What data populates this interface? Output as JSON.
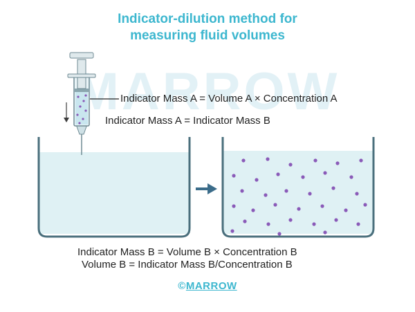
{
  "title": {
    "line1": "Indicator-dilution method for",
    "line2": "measuring fluid volumes"
  },
  "watermark": "MARROW",
  "equations": {
    "mass_a": "Indicator Mass A = Volume A × Concentration A",
    "mass_equal": "Indicator Mass A  =  Indicator Mass B",
    "mass_b": "Indicator Mass B = Volume B × Concentration B",
    "volume_b": "Volume B = Indicator Mass B/Concentration B"
  },
  "brand": {
    "copyright": "©",
    "name": "MARROW"
  },
  "icons": {
    "syringe": "syringe-icon",
    "arrow": "right-arrow-icon"
  },
  "colors": {
    "title": "#3db7cf",
    "beaker_wall": "#4a6f7c",
    "fluid": "#dff1f4",
    "indicator_particle": "#8a5ab8",
    "arrow": "#3b6c8a"
  }
}
